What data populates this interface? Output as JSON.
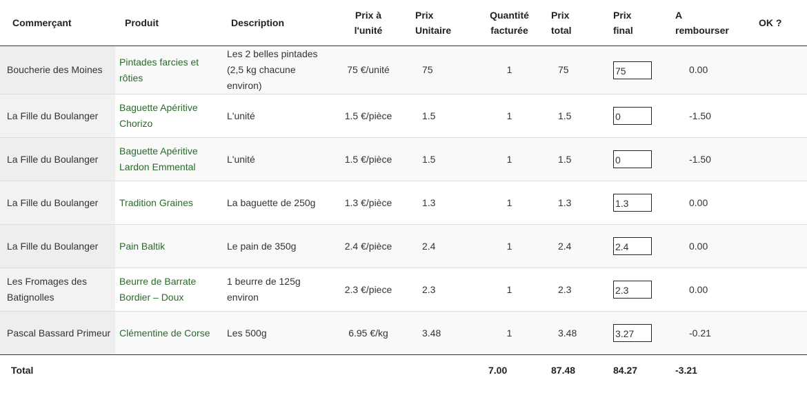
{
  "headers": {
    "commercant": "Commerçant",
    "produit": "Produit",
    "description": "Description",
    "prix_a_l_unite": [
      "Prix à",
      "l'unité"
    ],
    "prix_unitaire": [
      "Prix",
      "Unitaire"
    ],
    "quantite": [
      "Quantité",
      "facturée"
    ],
    "prix_total": [
      "Prix",
      "total"
    ],
    "prix_final": [
      "Prix",
      "final"
    ],
    "a_rembourser": [
      "A",
      "rembourser"
    ],
    "ok": "OK ?"
  },
  "rows": [
    {
      "merchant": "Boucherie des Moines",
      "product": "Pintades farcies et rôties",
      "description": "Les 2 belles pintades (2,5 kg chacune environ)",
      "unit_price_label": "75 €/unité",
      "unit_price": "75",
      "quantity": "1",
      "total": "75",
      "final": "75",
      "refund": "0.00"
    },
    {
      "merchant": "La Fille du Boulanger",
      "product": "Baguette Apéritive Chorizo",
      "description": "L'unité",
      "unit_price_label": "1.5 €/pièce",
      "unit_price": "1.5",
      "quantity": "1",
      "total": "1.5",
      "final": "0",
      "refund": "-1.50"
    },
    {
      "merchant": "La Fille du Boulanger",
      "product": "Baguette Apéritive Lardon Emmental",
      "description": "L'unité",
      "unit_price_label": "1.5 €/pièce",
      "unit_price": "1.5",
      "quantity": "1",
      "total": "1.5",
      "final": "0",
      "refund": "-1.50"
    },
    {
      "merchant": "La Fille du Boulanger",
      "product": "Tradition Graines",
      "description": "La baguette de 250g",
      "unit_price_label": "1.3 €/pièce",
      "unit_price": "1.3",
      "quantity": "1",
      "total": "1.3",
      "final": "1.3",
      "refund": "0.00"
    },
    {
      "merchant": "La Fille du Boulanger",
      "product": "Pain Baltik",
      "description": "Le pain de 350g",
      "unit_price_label": "2.4 €/pièce",
      "unit_price": "2.4",
      "quantity": "1",
      "total": "2.4",
      "final": "2.4",
      "refund": "0.00"
    },
    {
      "merchant": "Les Fromages des Batignolles",
      "product": "Beurre de Barrate Bordier – Doux",
      "description": "1 beurre de 125g environ",
      "unit_price_label": "2.3 €/piece",
      "unit_price": "2.3",
      "quantity": "1",
      "total": "2.3",
      "final": "2.3",
      "refund": "0.00"
    },
    {
      "merchant": "Pascal Bassard Primeur",
      "product": "Clémentine de Corse",
      "description": "Les 500g",
      "unit_price_label": "6.95 €/kg",
      "unit_price": "3.48",
      "quantity": "1",
      "total": "3.48",
      "final": "3.27",
      "refund": "-0.21"
    }
  ],
  "totals": {
    "label": "Total",
    "quantity": "7.00",
    "total": "87.48",
    "final": "84.27",
    "refund": "-3.21"
  }
}
